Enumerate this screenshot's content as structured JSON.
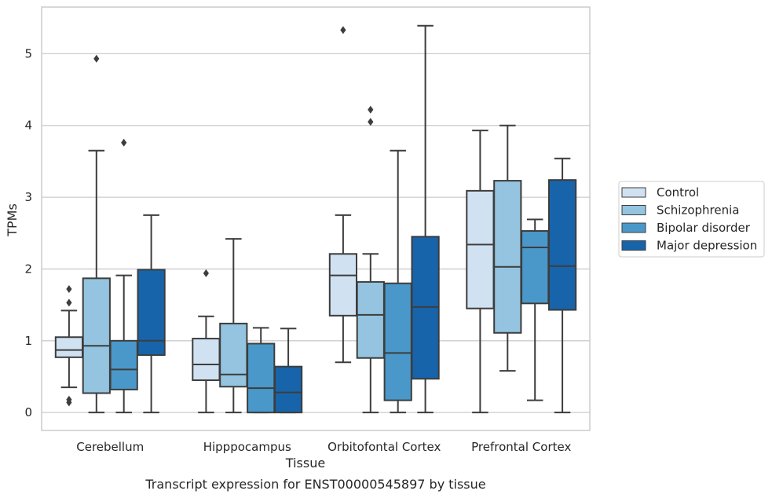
{
  "chart_data": {
    "type": "box",
    "title": "",
    "caption": "Transcript expression for ENST00000545897 by tissue",
    "xlabel": "Tissue",
    "ylabel": "TPMs",
    "ylim": [
      -0.25,
      5.65
    ],
    "yticks": [
      0,
      1,
      2,
      3,
      4,
      5
    ],
    "grid": "horizontal",
    "legend_position": "right",
    "categories": [
      "Cerebellum",
      "Hipppocampus",
      "Orbitofontal Cortex",
      "Prefrontal Cortex"
    ],
    "series": [
      {
        "name": "Control",
        "color": "#d0e1f2",
        "boxes": [
          {
            "whisker_low": 0.35,
            "q1": 0.77,
            "median": 0.87,
            "q3": 1.05,
            "whisker_high": 1.42,
            "outliers": [
              1.72,
              1.53,
              0.18,
              0.14
            ]
          },
          {
            "whisker_low": 0.0,
            "q1": 0.45,
            "median": 0.67,
            "q3": 1.03,
            "whisker_high": 1.34,
            "outliers": [
              1.94
            ]
          },
          {
            "whisker_low": 0.7,
            "q1": 1.35,
            "median": 1.91,
            "q3": 2.21,
            "whisker_high": 2.75,
            "outliers": [
              5.33
            ]
          },
          {
            "whisker_low": 0.0,
            "q1": 1.45,
            "median": 2.34,
            "q3": 3.09,
            "whisker_high": 3.93,
            "outliers": []
          }
        ]
      },
      {
        "name": "Schizophrenia",
        "color": "#94c4df",
        "boxes": [
          {
            "whisker_low": 0.0,
            "q1": 0.27,
            "median": 0.93,
            "q3": 1.87,
            "whisker_high": 3.65,
            "outliers": [
              4.93
            ]
          },
          {
            "whisker_low": 0.0,
            "q1": 0.36,
            "median": 0.53,
            "q3": 1.24,
            "whisker_high": 2.42,
            "outliers": []
          },
          {
            "whisker_low": 0.0,
            "q1": 0.76,
            "median": 1.36,
            "q3": 1.82,
            "whisker_high": 2.21,
            "outliers": [
              4.22,
              4.05
            ]
          },
          {
            "whisker_low": 0.58,
            "q1": 1.11,
            "median": 2.03,
            "q3": 3.23,
            "whisker_high": 4.0,
            "outliers": []
          }
        ]
      },
      {
        "name": "Bipolar disorder",
        "color": "#4a98c9",
        "boxes": [
          {
            "whisker_low": 0.0,
            "q1": 0.32,
            "median": 0.6,
            "q3": 1.0,
            "whisker_high": 1.91,
            "outliers": [
              3.76
            ]
          },
          {
            "whisker_low": 0.0,
            "q1": 0.0,
            "median": 0.34,
            "q3": 0.96,
            "whisker_high": 1.18,
            "outliers": []
          },
          {
            "whisker_low": 0.0,
            "q1": 0.17,
            "median": 0.83,
            "q3": 1.8,
            "whisker_high": 3.65,
            "outliers": []
          },
          {
            "whisker_low": 0.17,
            "q1": 1.52,
            "median": 2.3,
            "q3": 2.53,
            "whisker_high": 2.69,
            "outliers": []
          }
        ]
      },
      {
        "name": "Major depression",
        "color": "#1764ab",
        "boxes": [
          {
            "whisker_low": 0.0,
            "q1": 0.8,
            "median": 1.0,
            "q3": 1.99,
            "whisker_high": 2.75,
            "outliers": []
          },
          {
            "whisker_low": 0.0,
            "q1": 0.0,
            "median": 0.28,
            "q3": 0.64,
            "whisker_high": 1.17,
            "outliers": []
          },
          {
            "whisker_low": 0.0,
            "q1": 0.47,
            "median": 1.47,
            "q3": 2.45,
            "whisker_high": 5.39,
            "outliers": []
          },
          {
            "whisker_low": 0.0,
            "q1": 1.43,
            "median": 2.04,
            "q3": 3.24,
            "whisker_high": 3.54,
            "outliers": []
          }
        ]
      }
    ]
  }
}
